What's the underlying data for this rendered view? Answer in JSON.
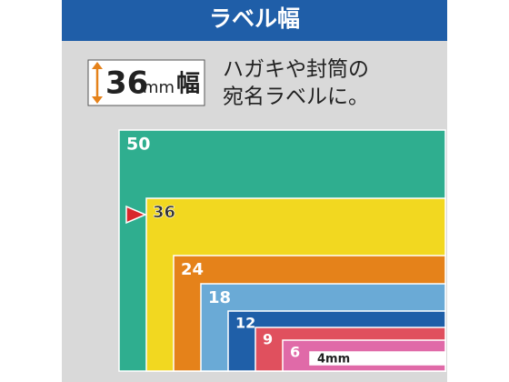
{
  "header": {
    "title": "ラベル幅"
  },
  "badge": {
    "number": "36",
    "unit": "mm",
    "suffix": "幅"
  },
  "description": [
    "ハガキや封筒の",
    "宛名ラベルに。"
  ],
  "widths": [
    {
      "label": "50",
      "color": "#2fae8f"
    },
    {
      "label": "36",
      "color": "#f2d820"
    },
    {
      "label": "24",
      "color": "#e5821a"
    },
    {
      "label": "18",
      "color": "#6aaad6"
    },
    {
      "label": "12",
      "color": "#1f5fa8"
    },
    {
      "label": "9",
      "color": "#e0505e"
    },
    {
      "label": "6",
      "color": "#e06aa8"
    },
    {
      "label": "4mm",
      "color": "#ffffff"
    }
  ]
}
